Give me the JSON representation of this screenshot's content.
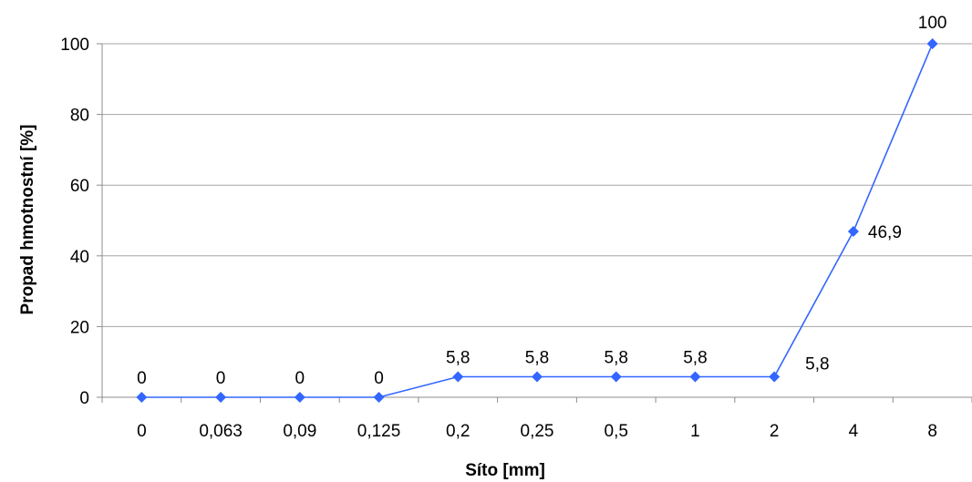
{
  "chart_data": {
    "type": "line",
    "title": "",
    "xlabel": "Síto [mm]",
    "ylabel": "Propad hmotnostní [%]",
    "categories": [
      "0",
      "0,063",
      "0,09",
      "0,125",
      "0,2",
      "0,25",
      "0,5",
      "1",
      "2",
      "4",
      "8"
    ],
    "series": [
      {
        "values": [
          0,
          0,
          0,
          0,
          5.8,
          5.8,
          5.8,
          5.8,
          5.8,
          46.9,
          100
        ],
        "data_labels": [
          "0",
          "0",
          "0",
          "0",
          "5,8",
          "5,8",
          "5,8",
          "5,8",
          "5,8",
          "46,9",
          "100"
        ],
        "color": "#3366ff",
        "marker": "diamond"
      }
    ],
    "ylim": [
      0,
      100
    ],
    "yticks": [
      "0",
      "20",
      "40",
      "60",
      "80",
      "100"
    ],
    "grid": true,
    "legend": "none"
  }
}
